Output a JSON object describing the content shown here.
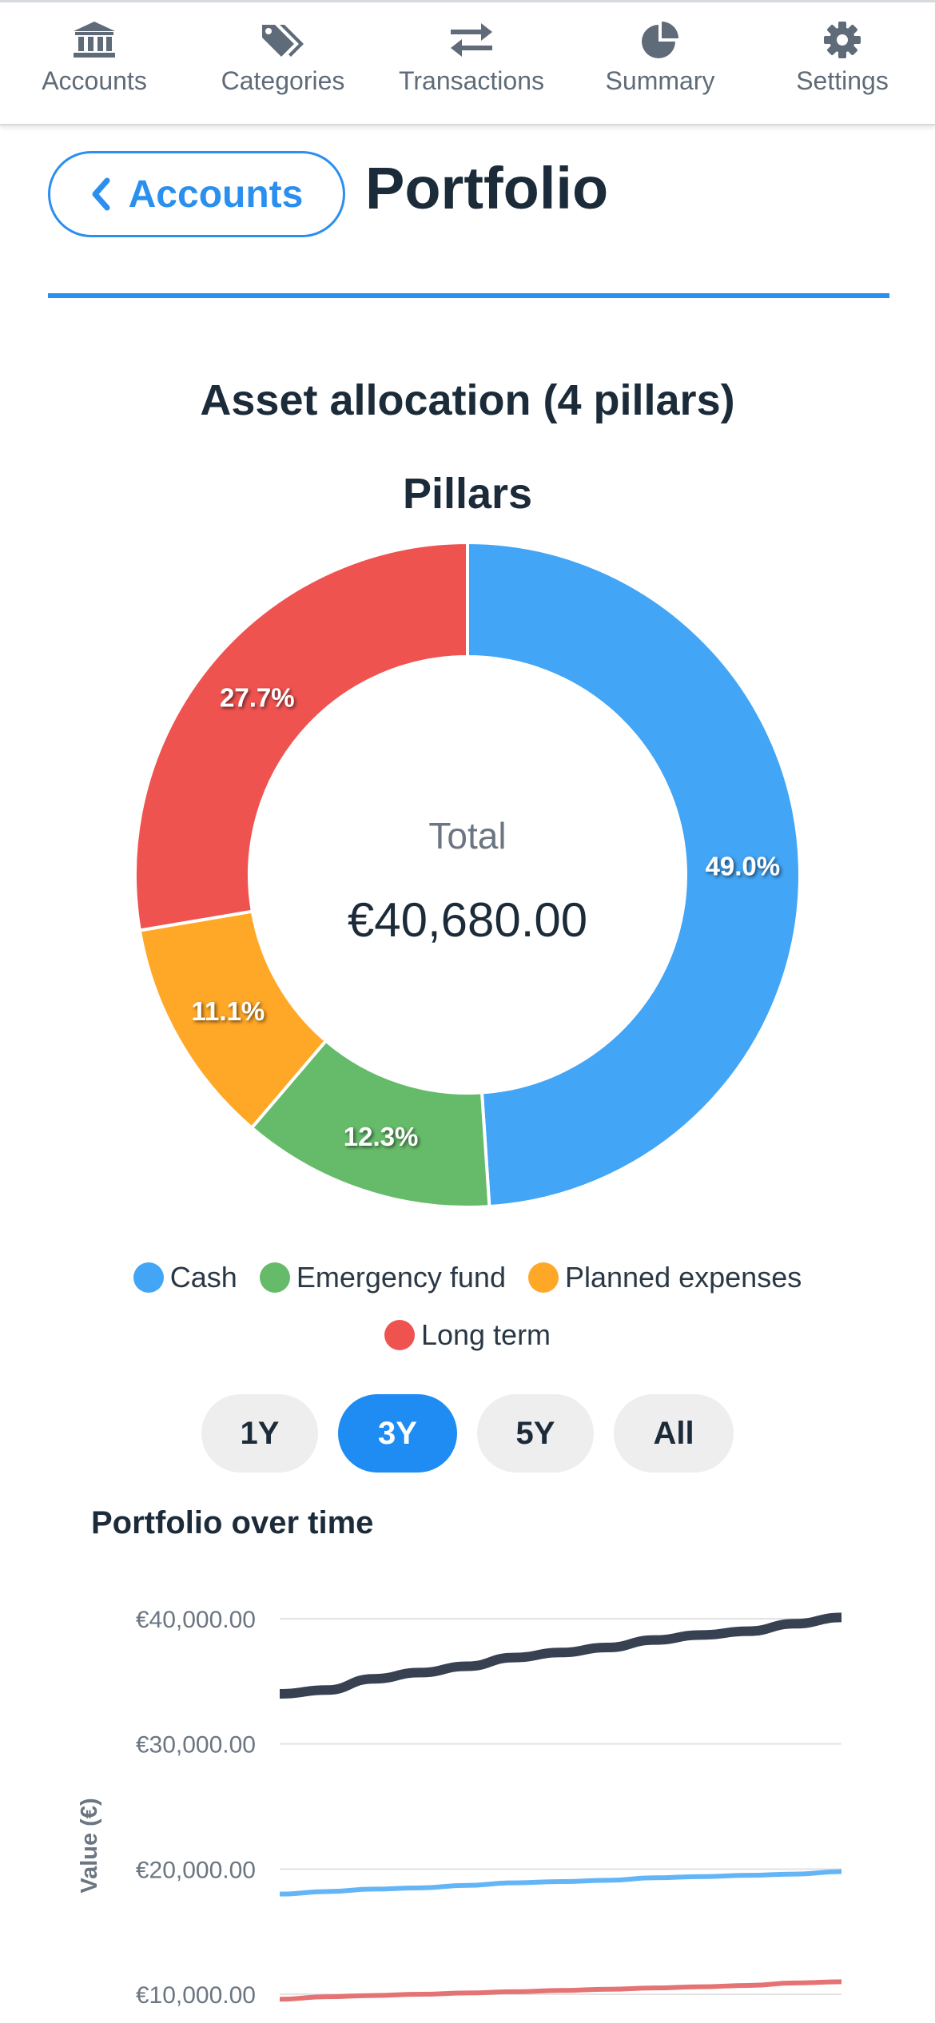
{
  "nav": {
    "items": [
      {
        "label": "Accounts",
        "icon": "bank-icon"
      },
      {
        "label": "Categories",
        "icon": "tags-icon"
      },
      {
        "label": "Transactions",
        "icon": "exchange-arrows-icon"
      },
      {
        "label": "Summary",
        "icon": "pie-chart-icon"
      },
      {
        "label": "Settings",
        "icon": "gear-icon"
      }
    ]
  },
  "header": {
    "back_label": "Accounts",
    "title": "Portfolio"
  },
  "allocation": {
    "title": "Asset allocation (4 pillars)",
    "chart_title": "Pillars",
    "center_label": "Total",
    "center_value": "€40,680.00"
  },
  "legend": [
    {
      "label": "Cash",
      "color": "#42a5f5"
    },
    {
      "label": "Emergency fund",
      "color": "#66bb6a"
    },
    {
      "label": "Planned expenses",
      "color": "#ffa726"
    },
    {
      "label": "Long term",
      "color": "#ef5350"
    }
  ],
  "ranges": {
    "items": [
      "1Y",
      "3Y",
      "5Y",
      "All"
    ],
    "active": "3Y"
  },
  "line_title": "Portfolio over time",
  "chart_data": [
    {
      "type": "pie",
      "title": "Pillars",
      "categories": [
        "Cash",
        "Emergency fund",
        "Planned expenses",
        "Long term"
      ],
      "values": [
        49.0,
        12.3,
        11.1,
        27.7
      ],
      "data_labels": [
        "49.0%",
        "12.3%",
        "11.1%",
        "27.7%"
      ],
      "colors": [
        "#42a5f5",
        "#66bb6a",
        "#ffa726",
        "#ef5350"
      ],
      "legend": "bottom"
    },
    {
      "type": "line",
      "title": "Portfolio over time",
      "ylabel": "Value (€)",
      "ylim": [
        10000,
        40000
      ],
      "y_ticks": [
        40000,
        30000,
        20000,
        10000
      ],
      "y_tick_labels": [
        "€40,000.00",
        "€30,000.00",
        "€20,000.00",
        "€10,000.00"
      ],
      "grid": true,
      "x": [
        0,
        1,
        2,
        3,
        4,
        5,
        6,
        7,
        8,
        9,
        10,
        11,
        12
      ],
      "series": [
        {
          "color": "#374151",
          "values": [
            34000,
            34300,
            35200,
            35700,
            36200,
            36900,
            37300,
            37700,
            38300,
            38700,
            39000,
            39600,
            40100
          ]
        },
        {
          "color": "#64b5f6",
          "values": [
            18000,
            18200,
            18400,
            18500,
            18700,
            18900,
            19000,
            19100,
            19300,
            19400,
            19500,
            19600,
            19800
          ]
        },
        {
          "color": "#e57373",
          "values": [
            9600,
            9800,
            9900,
            10000,
            10100,
            10200,
            10300,
            10400,
            10500,
            10600,
            10700,
            10900,
            11000
          ]
        }
      ]
    }
  ]
}
